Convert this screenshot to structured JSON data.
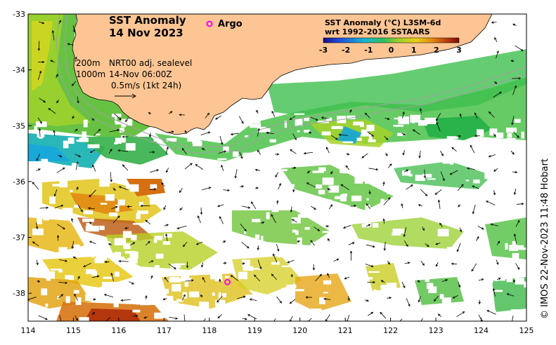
{
  "title": {
    "line1": "SST Anomaly",
    "line2": "14 Nov 2023"
  },
  "legend": {
    "argo_label": "Argo",
    "colorbar_title_1": "SST Anomaly (°C) L3SM-6d",
    "colorbar_title_2": "wrt 1992-2016 SSTAARS",
    "colorbar_ticks": [
      "-3",
      "-2",
      "-1",
      "0",
      "1",
      "2",
      "3"
    ],
    "colorbar_min": -3,
    "colorbar_max": 3,
    "colors": [
      "#1a0a8c",
      "#1f4fd8",
      "#19b4d2",
      "#2fbf5a",
      "#9ccc2a",
      "#e7d214",
      "#e58a12",
      "#b4350c",
      "#7a0d06"
    ]
  },
  "annotations": {
    "contour_200": "200m",
    "contour_1000": "1000m",
    "product": "NRT00 adj. sealevel",
    "time": "14-Nov 06:00Z",
    "scale": "0.5m/s (1kt 24h)"
  },
  "credit": "© IMOS 22-Nov-2023 11:48 Hobart",
  "axes": {
    "x_ticks": [
      "114",
      "115",
      "116",
      "117",
      "118",
      "119",
      "120",
      "121",
      "122",
      "123",
      "124",
      "125"
    ],
    "y_ticks": [
      "-33",
      "-34",
      "-35",
      "-36",
      "-37",
      "-38"
    ],
    "lon_range": [
      114,
      125
    ],
    "lat_range": [
      -38.5,
      -33
    ]
  },
  "argo_floats": [
    {
      "lon": 118.4,
      "lat": -37.8
    }
  ],
  "colors": {
    "land": "#fcc593",
    "argo": "#ff00ff",
    "contour": "#a0a0a0"
  }
}
